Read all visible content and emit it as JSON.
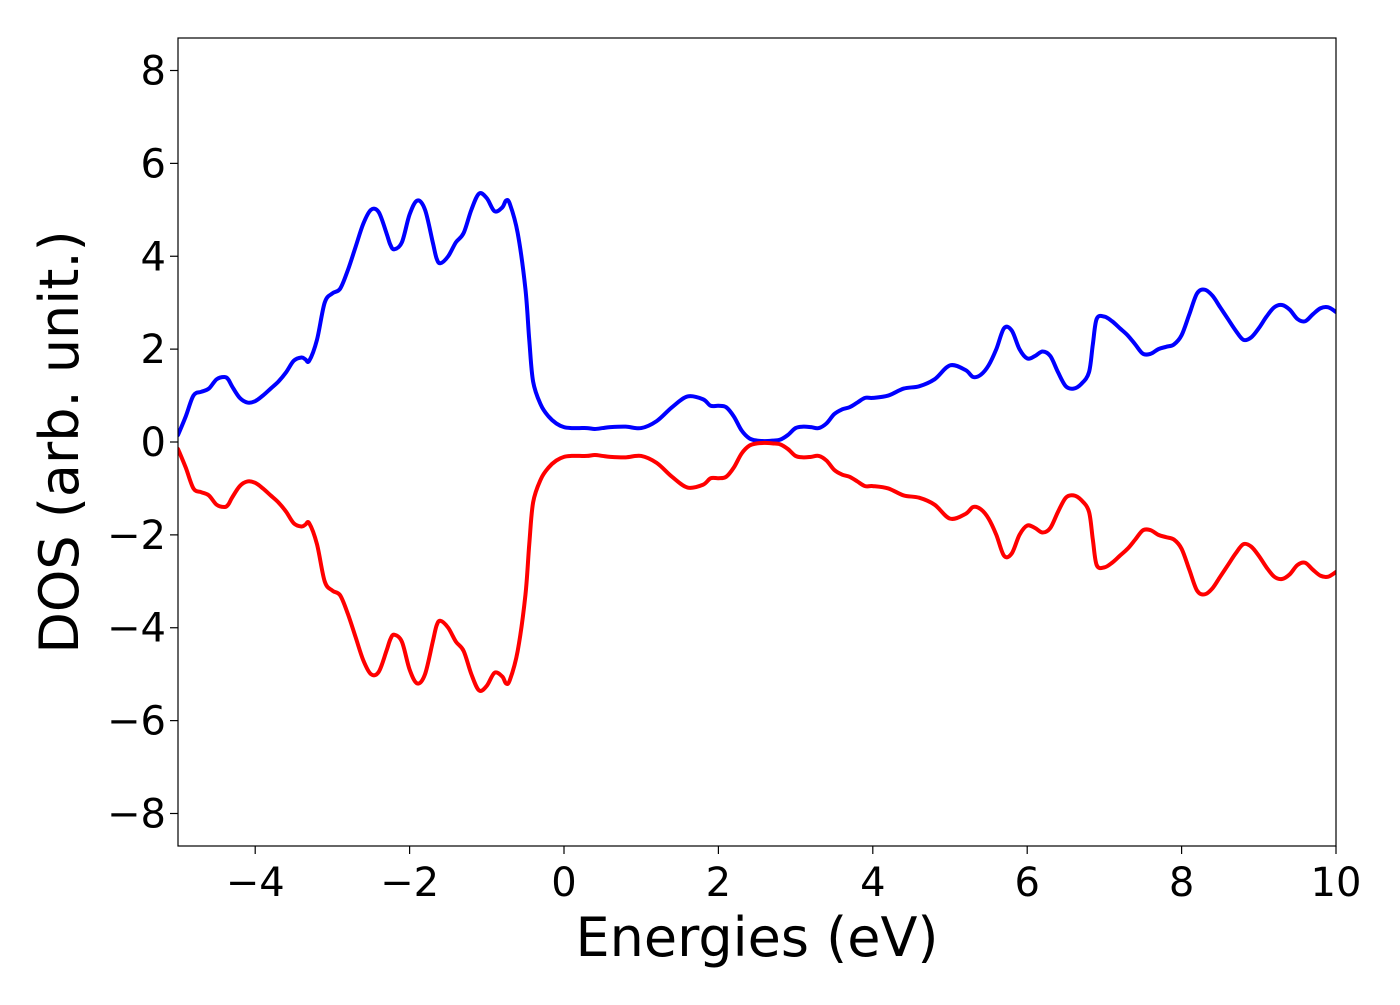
{
  "chart_data": {
    "type": "line",
    "title": "",
    "xlabel": "Energies (eV)",
    "ylabel": "DOS (arb. unit.)",
    "xlim": [
      -5,
      10
    ],
    "ylim": [
      -8.7,
      8.7
    ],
    "x_ticks": [
      -4,
      -2,
      0,
      2,
      4,
      6,
      8,
      10
    ],
    "x_tick_labels": [
      "−4",
      "−2",
      "0",
      "2",
      "4",
      "6",
      "8",
      "10"
    ],
    "y_ticks": [
      -8,
      -6,
      -4,
      -2,
      0,
      2,
      4,
      6,
      8
    ],
    "y_tick_labels": [
      "−8",
      "−6",
      "−4",
      "−2",
      "0",
      "2",
      "4",
      "6",
      "8"
    ],
    "grid": false,
    "legend": "none",
    "series": [
      {
        "color": "#0000ff",
        "x": [
          -5.0,
          -4.9,
          -4.8,
          -4.7,
          -4.6,
          -4.5,
          -4.4,
          -4.35,
          -4.3,
          -4.2,
          -4.1,
          -4.0,
          -3.9,
          -3.8,
          -3.7,
          -3.6,
          -3.5,
          -3.4,
          -3.35,
          -3.3,
          -3.2,
          -3.1,
          -3.0,
          -2.9,
          -2.8,
          -2.7,
          -2.6,
          -2.5,
          -2.4,
          -2.3,
          -2.25,
          -2.2,
          -2.1,
          -2.0,
          -1.9,
          -1.8,
          -1.7,
          -1.65,
          -1.6,
          -1.5,
          -1.4,
          -1.3,
          -1.2,
          -1.1,
          -1.0,
          -0.9,
          -0.8,
          -0.75,
          -0.7,
          -0.6,
          -0.5,
          -0.45,
          -0.4,
          -0.3,
          -0.2,
          -0.1,
          0.0,
          0.1,
          0.2,
          0.3,
          0.4,
          0.5,
          0.6,
          0.8,
          1.0,
          1.2,
          1.4,
          1.6,
          1.8,
          1.9,
          2.0,
          2.1,
          2.2,
          2.3,
          2.4,
          2.5,
          2.6,
          2.7,
          2.8,
          2.9,
          3.0,
          3.1,
          3.2,
          3.3,
          3.4,
          3.5,
          3.6,
          3.7,
          3.8,
          3.9,
          4.0,
          4.2,
          4.4,
          4.6,
          4.8,
          5.0,
          5.2,
          5.3,
          5.4,
          5.5,
          5.6,
          5.7,
          5.8,
          5.9,
          6.0,
          6.1,
          6.2,
          6.3,
          6.4,
          6.5,
          6.6,
          6.7,
          6.8,
          6.85,
          6.9,
          7.0,
          7.1,
          7.2,
          7.3,
          7.4,
          7.5,
          7.6,
          7.7,
          7.8,
          7.9,
          8.0,
          8.1,
          8.2,
          8.3,
          8.4,
          8.5,
          8.6,
          8.7,
          8.8,
          8.9,
          9.0,
          9.1,
          9.2,
          9.3,
          9.4,
          9.5,
          9.6,
          9.7,
          9.8,
          9.9,
          10.0
        ],
        "y": [
          0.15,
          0.55,
          1.0,
          1.08,
          1.15,
          1.35,
          1.4,
          1.35,
          1.2,
          0.95,
          0.85,
          0.88,
          1.0,
          1.15,
          1.3,
          1.5,
          1.75,
          1.82,
          1.78,
          1.75,
          2.2,
          3.0,
          3.2,
          3.3,
          3.7,
          4.2,
          4.7,
          5.0,
          4.95,
          4.5,
          4.25,
          4.15,
          4.3,
          4.9,
          5.2,
          5.0,
          4.3,
          3.95,
          3.85,
          4.0,
          4.3,
          4.5,
          5.0,
          5.35,
          5.25,
          4.97,
          5.05,
          5.2,
          5.12,
          4.5,
          3.3,
          2.2,
          1.3,
          0.8,
          0.55,
          0.4,
          0.32,
          0.3,
          0.3,
          0.3,
          0.28,
          0.3,
          0.32,
          0.33,
          0.3,
          0.45,
          0.75,
          0.98,
          0.92,
          0.78,
          0.78,
          0.75,
          0.55,
          0.25,
          0.08,
          0.03,
          0.02,
          0.03,
          0.05,
          0.15,
          0.3,
          0.33,
          0.32,
          0.3,
          0.4,
          0.6,
          0.7,
          0.75,
          0.85,
          0.95,
          0.95,
          1.0,
          1.15,
          1.2,
          1.35,
          1.65,
          1.55,
          1.4,
          1.45,
          1.65,
          2.0,
          2.45,
          2.4,
          2.0,
          1.8,
          1.85,
          1.95,
          1.85,
          1.5,
          1.2,
          1.15,
          1.25,
          1.5,
          2.1,
          2.65,
          2.7,
          2.6,
          2.45,
          2.3,
          2.1,
          1.9,
          1.9,
          2.0,
          2.05,
          2.1,
          2.3,
          2.75,
          3.2,
          3.28,
          3.15,
          2.9,
          2.65,
          2.4,
          2.2,
          2.25,
          2.45,
          2.7,
          2.9,
          2.95,
          2.85,
          2.65,
          2.6,
          2.75,
          2.88,
          2.9,
          2.8
        ]
      },
      {
        "color": "#ff0000",
        "x": [
          -5.0,
          -4.9,
          -4.8,
          -4.7,
          -4.6,
          -4.5,
          -4.4,
          -4.35,
          -4.3,
          -4.2,
          -4.1,
          -4.0,
          -3.9,
          -3.8,
          -3.7,
          -3.6,
          -3.5,
          -3.4,
          -3.35,
          -3.3,
          -3.2,
          -3.1,
          -3.0,
          -2.9,
          -2.8,
          -2.7,
          -2.6,
          -2.5,
          -2.4,
          -2.3,
          -2.25,
          -2.2,
          -2.1,
          -2.0,
          -1.9,
          -1.8,
          -1.7,
          -1.65,
          -1.6,
          -1.5,
          -1.4,
          -1.3,
          -1.2,
          -1.1,
          -1.0,
          -0.9,
          -0.8,
          -0.75,
          -0.7,
          -0.6,
          -0.5,
          -0.45,
          -0.4,
          -0.3,
          -0.2,
          -0.1,
          0.0,
          0.1,
          0.2,
          0.3,
          0.4,
          0.5,
          0.6,
          0.8,
          1.0,
          1.2,
          1.4,
          1.6,
          1.8,
          1.9,
          2.0,
          2.1,
          2.2,
          2.3,
          2.4,
          2.5,
          2.6,
          2.7,
          2.8,
          2.9,
          3.0,
          3.1,
          3.2,
          3.3,
          3.4,
          3.5,
          3.6,
          3.7,
          3.8,
          3.9,
          4.0,
          4.2,
          4.4,
          4.6,
          4.8,
          5.0,
          5.2,
          5.3,
          5.4,
          5.5,
          5.6,
          5.7,
          5.8,
          5.9,
          6.0,
          6.1,
          6.2,
          6.3,
          6.4,
          6.5,
          6.6,
          6.7,
          6.8,
          6.85,
          6.9,
          7.0,
          7.1,
          7.2,
          7.3,
          7.4,
          7.5,
          7.6,
          7.7,
          7.8,
          7.9,
          8.0,
          8.1,
          8.2,
          8.3,
          8.4,
          8.5,
          8.6,
          8.7,
          8.8,
          8.9,
          9.0,
          9.1,
          9.2,
          9.3,
          9.4,
          9.5,
          9.6,
          9.7,
          9.8,
          9.9,
          10.0
        ],
        "y": [
          -0.15,
          -0.55,
          -1.0,
          -1.08,
          -1.15,
          -1.35,
          -1.4,
          -1.35,
          -1.2,
          -0.95,
          -0.85,
          -0.88,
          -1.0,
          -1.15,
          -1.3,
          -1.5,
          -1.75,
          -1.82,
          -1.78,
          -1.75,
          -2.2,
          -3.0,
          -3.2,
          -3.3,
          -3.7,
          -4.2,
          -4.7,
          -5.0,
          -4.95,
          -4.5,
          -4.25,
          -4.15,
          -4.3,
          -4.9,
          -5.2,
          -5.0,
          -4.3,
          -3.95,
          -3.85,
          -4.0,
          -4.3,
          -4.5,
          -5.0,
          -5.35,
          -5.25,
          -4.97,
          -5.05,
          -5.2,
          -5.12,
          -4.5,
          -3.3,
          -2.2,
          -1.3,
          -0.8,
          -0.55,
          -0.4,
          -0.32,
          -0.3,
          -0.3,
          -0.3,
          -0.28,
          -0.3,
          -0.32,
          -0.33,
          -0.3,
          -0.45,
          -0.75,
          -0.98,
          -0.92,
          -0.78,
          -0.78,
          -0.75,
          -0.55,
          -0.25,
          -0.08,
          -0.03,
          -0.02,
          -0.03,
          -0.05,
          -0.15,
          -0.3,
          -0.33,
          -0.32,
          -0.3,
          -0.4,
          -0.6,
          -0.7,
          -0.75,
          -0.85,
          -0.95,
          -0.95,
          -1.0,
          -1.15,
          -1.2,
          -1.35,
          -1.65,
          -1.55,
          -1.4,
          -1.45,
          -1.65,
          -2.0,
          -2.45,
          -2.4,
          -2.0,
          -1.8,
          -1.85,
          -1.95,
          -1.85,
          -1.5,
          -1.2,
          -1.15,
          -1.25,
          -1.5,
          -2.1,
          -2.65,
          -2.7,
          -2.6,
          -2.45,
          -2.3,
          -2.1,
          -1.9,
          -1.9,
          -2.0,
          -2.05,
          -2.1,
          -2.3,
          -2.75,
          -3.2,
          -3.28,
          -3.15,
          -2.9,
          -2.65,
          -2.4,
          -2.2,
          -2.25,
          -2.45,
          -2.7,
          -2.9,
          -2.95,
          -2.85,
          -2.65,
          -2.6,
          -2.75,
          -2.88,
          -2.9,
          -2.8
        ]
      }
    ]
  }
}
